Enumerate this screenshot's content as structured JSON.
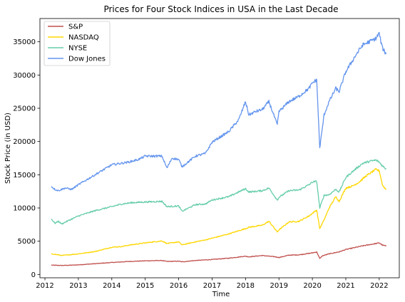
{
  "chart_data": {
    "type": "line",
    "title": "Prices for Four Stock Indices in USA in the Last Decade",
    "xlabel": "Time",
    "ylabel": "Stock Price (in USD)",
    "xlim": [
      2011.85,
      2022.6
    ],
    "ylim": [
      -500,
      38500
    ],
    "xticks": [
      2012,
      2013,
      2014,
      2015,
      2016,
      2017,
      2018,
      2019,
      2020,
      2021,
      2022
    ],
    "xtick_labels": [
      "2012",
      "2013",
      "2014",
      "2015",
      "2016",
      "2017",
      "2018",
      "2019",
      "2020",
      "2021",
      "2022"
    ],
    "yticks": [
      0,
      5000,
      10000,
      15000,
      20000,
      25000,
      30000,
      35000
    ],
    "ytick_labels": [
      "0",
      "5000",
      "10000",
      "15000",
      "20000",
      "25000",
      "30000",
      "35000"
    ],
    "grid": false,
    "legend_position": "top-left",
    "series": [
      {
        "name": "S&P",
        "color": "#c0504d",
        "x": [
          2012.2,
          2012.5,
          2012.8,
          2013.0,
          2013.5,
          2014.0,
          2014.5,
          2015.0,
          2015.5,
          2015.65,
          2016.0,
          2016.1,
          2016.5,
          2017.0,
          2017.5,
          2018.0,
          2018.1,
          2018.5,
          2018.9,
          2019.0,
          2019.3,
          2019.6,
          2020.0,
          2020.13,
          2020.22,
          2020.3,
          2020.5,
          2020.8,
          2021.0,
          2021.5,
          2021.9,
          2022.0,
          2022.1,
          2022.2
        ],
        "y": [
          1400,
          1350,
          1400,
          1450,
          1620,
          1800,
          1950,
          2050,
          2100,
          1950,
          2000,
          1900,
          2100,
          2250,
          2450,
          2750,
          2650,
          2850,
          2650,
          2550,
          2900,
          2950,
          3250,
          3380,
          2400,
          2800,
          3100,
          3400,
          3750,
          4300,
          4650,
          4750,
          4400,
          4300
        ]
      },
      {
        "name": "NASDAQ",
        "color": "#ffd700",
        "x": [
          2012.2,
          2012.4,
          2012.5,
          2012.8,
          2013.0,
          2013.5,
          2014.0,
          2014.3,
          2014.5,
          2015.0,
          2015.5,
          2015.65,
          2016.0,
          2016.1,
          2016.5,
          2016.8,
          2017.0,
          2017.5,
          2018.0,
          2018.1,
          2018.5,
          2018.7,
          2018.95,
          2019.0,
          2019.3,
          2019.6,
          2019.9,
          2020.0,
          2020.13,
          2020.22,
          2020.35,
          2020.5,
          2020.7,
          2020.8,
          2021.0,
          2021.2,
          2021.4,
          2021.6,
          2021.9,
          2022.0,
          2022.1,
          2022.2
        ],
        "y": [
          3100,
          2950,
          2850,
          3000,
          3100,
          3450,
          4100,
          4200,
          4400,
          4750,
          5050,
          4650,
          4900,
          4450,
          4900,
          5200,
          5450,
          6100,
          6900,
          7100,
          7400,
          8000,
          6400,
          6700,
          7900,
          8000,
          8800,
          9200,
          9700,
          6900,
          8200,
          10000,
          11700,
          11000,
          13000,
          13300,
          13900,
          14800,
          15800,
          15600,
          13400,
          12800
        ]
      },
      {
        "name": "NYSE",
        "color": "#66cdaa",
        "x": [
          2012.2,
          2012.3,
          2012.4,
          2012.5,
          2012.7,
          2013.0,
          2013.5,
          2014.0,
          2014.3,
          2014.6,
          2015.0,
          2015.5,
          2015.65,
          2016.0,
          2016.1,
          2016.5,
          2016.8,
          2017.0,
          2017.5,
          2018.0,
          2018.1,
          2018.5,
          2018.7,
          2018.95,
          2019.0,
          2019.3,
          2019.6,
          2019.9,
          2020.0,
          2020.13,
          2020.22,
          2020.35,
          2020.5,
          2020.7,
          2020.8,
          2021.0,
          2021.3,
          2021.5,
          2021.7,
          2021.9,
          2022.0,
          2022.1,
          2022.2
        ],
        "y": [
          8300,
          7700,
          8000,
          7600,
          8100,
          8800,
          9600,
          10200,
          10600,
          10800,
          10900,
          11000,
          10200,
          10300,
          9500,
          10500,
          10600,
          11200,
          11700,
          12900,
          12400,
          12600,
          13000,
          11200,
          11600,
          12600,
          12700,
          13500,
          13900,
          14000,
          10000,
          11900,
          12000,
          12800,
          12400,
          14600,
          15900,
          16700,
          17000,
          17200,
          16900,
          16300,
          15900
        ]
      },
      {
        "name": "Dow Jones",
        "color": "#6495ed",
        "x": [
          2012.2,
          2012.3,
          2012.4,
          2012.6,
          2012.8,
          2013.0,
          2013.5,
          2014.0,
          2014.5,
          2014.8,
          2015.0,
          2015.5,
          2015.65,
          2015.8,
          2016.0,
          2016.1,
          2016.5,
          2016.8,
          2017.0,
          2017.5,
          2017.8,
          2018.0,
          2018.1,
          2018.3,
          2018.5,
          2018.7,
          2018.95,
          2019.0,
          2019.3,
          2019.6,
          2019.9,
          2020.0,
          2020.13,
          2020.22,
          2020.35,
          2020.5,
          2020.7,
          2020.8,
          2021.0,
          2021.3,
          2021.5,
          2021.7,
          2021.9,
          2022.0,
          2022.05,
          2022.1,
          2022.2
        ],
        "y": [
          13200,
          12800,
          12600,
          13000,
          12800,
          13500,
          15000,
          16500,
          16900,
          17300,
          17800,
          17800,
          16000,
          17500,
          17300,
          16200,
          17800,
          18200,
          19900,
          21500,
          23300,
          26000,
          24000,
          24500,
          24800,
          26000,
          22500,
          24500,
          26000,
          26800,
          28000,
          28800,
          29300,
          19000,
          24000,
          26000,
          28000,
          27500,
          30500,
          33000,
          34500,
          35000,
          35500,
          36300,
          35000,
          34000,
          33200
        ]
      }
    ]
  }
}
